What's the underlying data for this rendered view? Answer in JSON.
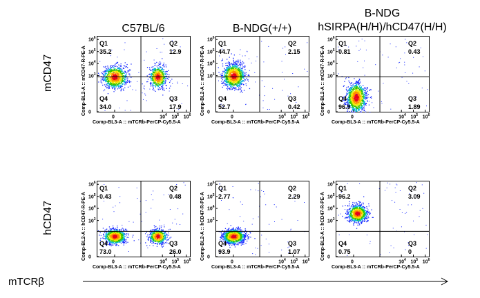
{
  "columns": [
    {
      "lines": [
        "C57BL/6"
      ]
    },
    {
      "lines": [
        "B-NDG(+/+)"
      ]
    },
    {
      "lines": [
        "B-NDG",
        "hSIRPA(H/H)/hCD47(H/H)"
      ]
    }
  ],
  "rows": [
    {
      "label": "mCD47",
      "ylabel": "Comp-BL2-A :: mCD47-R-PE-A"
    },
    {
      "label": "hCD47",
      "ylabel": "Comp-BL2-A :: hCD47-R-PE-A"
    }
  ],
  "xlabel": "Comp-BL3-A :: mTCRb-PerCP-Cy5.5-A",
  "bottom_label": "mTCRβ",
  "x_ticks": [
    {
      "base": "0",
      "exp": ""
    },
    {
      "base": "10",
      "exp": "4"
    },
    {
      "base": "10",
      "exp": "5"
    },
    {
      "base": "10",
      "exp": "6"
    }
  ],
  "y_ticks": [
    {
      "base": "10",
      "exp": "6"
    },
    {
      "base": "10",
      "exp": "5"
    },
    {
      "base": "10",
      "exp": "4"
    },
    {
      "base": "10",
      "exp": "3"
    },
    {
      "base": "0",
      "exp": ""
    }
  ],
  "quadrant_names": [
    "Q1",
    "Q2",
    "Q3",
    "Q4"
  ],
  "chart_data": {
    "type": "scatter",
    "description_free": true,
    "panels": [
      {
        "row": 0,
        "col": 0,
        "Q1": "35.2",
        "Q2": "12.9",
        "Q3": "17.9",
        "Q4": "34.0",
        "clusters": [
          {
            "x": 0.0,
            "y": 2.9,
            "n": 900,
            "sx": 0.5,
            "sy": 0.45
          },
          {
            "x": 3.6,
            "y": 2.9,
            "n": 650,
            "sx": 0.35,
            "sy": 0.45
          }
        ]
      },
      {
        "row": 0,
        "col": 1,
        "Q1": "44.7",
        "Q2": "2.15",
        "Q3": "0.42",
        "Q4": "52.7",
        "clusters": [
          {
            "x": 0.0,
            "y": 3.0,
            "n": 1100,
            "sx": 0.45,
            "sy": 0.5
          }
        ]
      },
      {
        "row": 0,
        "col": 2,
        "Q1": "0.81",
        "Q2": "0.43",
        "Q3": "1.89",
        "Q4": "96.9",
        "clusters": [
          {
            "x": 0.2,
            "y": 1.2,
            "n": 1100,
            "sx": 0.4,
            "sy": 0.6
          }
        ]
      },
      {
        "row": 1,
        "col": 0,
        "Q1": "0.43",
        "Q2": "0.48",
        "Q3": "26.0",
        "Q4": "73.0",
        "clusters": [
          {
            "x": 0.0,
            "y": 1.7,
            "n": 900,
            "sx": 0.45,
            "sy": 0.3
          },
          {
            "x": 3.6,
            "y": 1.7,
            "n": 600,
            "sx": 0.35,
            "sy": 0.3
          }
        ]
      },
      {
        "row": 1,
        "col": 1,
        "Q1": "2.77",
        "Q2": "2.29",
        "Q3": "1.07",
        "Q4": "93.9",
        "clusters": [
          {
            "x": 0.0,
            "y": 1.7,
            "n": 1100,
            "sx": 0.45,
            "sy": 0.3
          }
        ]
      },
      {
        "row": 1,
        "col": 2,
        "Q1": "96.2",
        "Q2": "3.09",
        "Q3": "0",
        "Q4": "0.75",
        "clusters": [
          {
            "x": 0.3,
            "y": 3.6,
            "n": 900,
            "sx": 0.4,
            "sy": 0.35
          }
        ]
      }
    ],
    "x_gate": 2.2,
    "y_gate": [
      2.9,
      2.1
    ],
    "xlim": [
      -1.5,
      6.3
    ],
    "ylim": [
      0,
      6.3
    ]
  }
}
